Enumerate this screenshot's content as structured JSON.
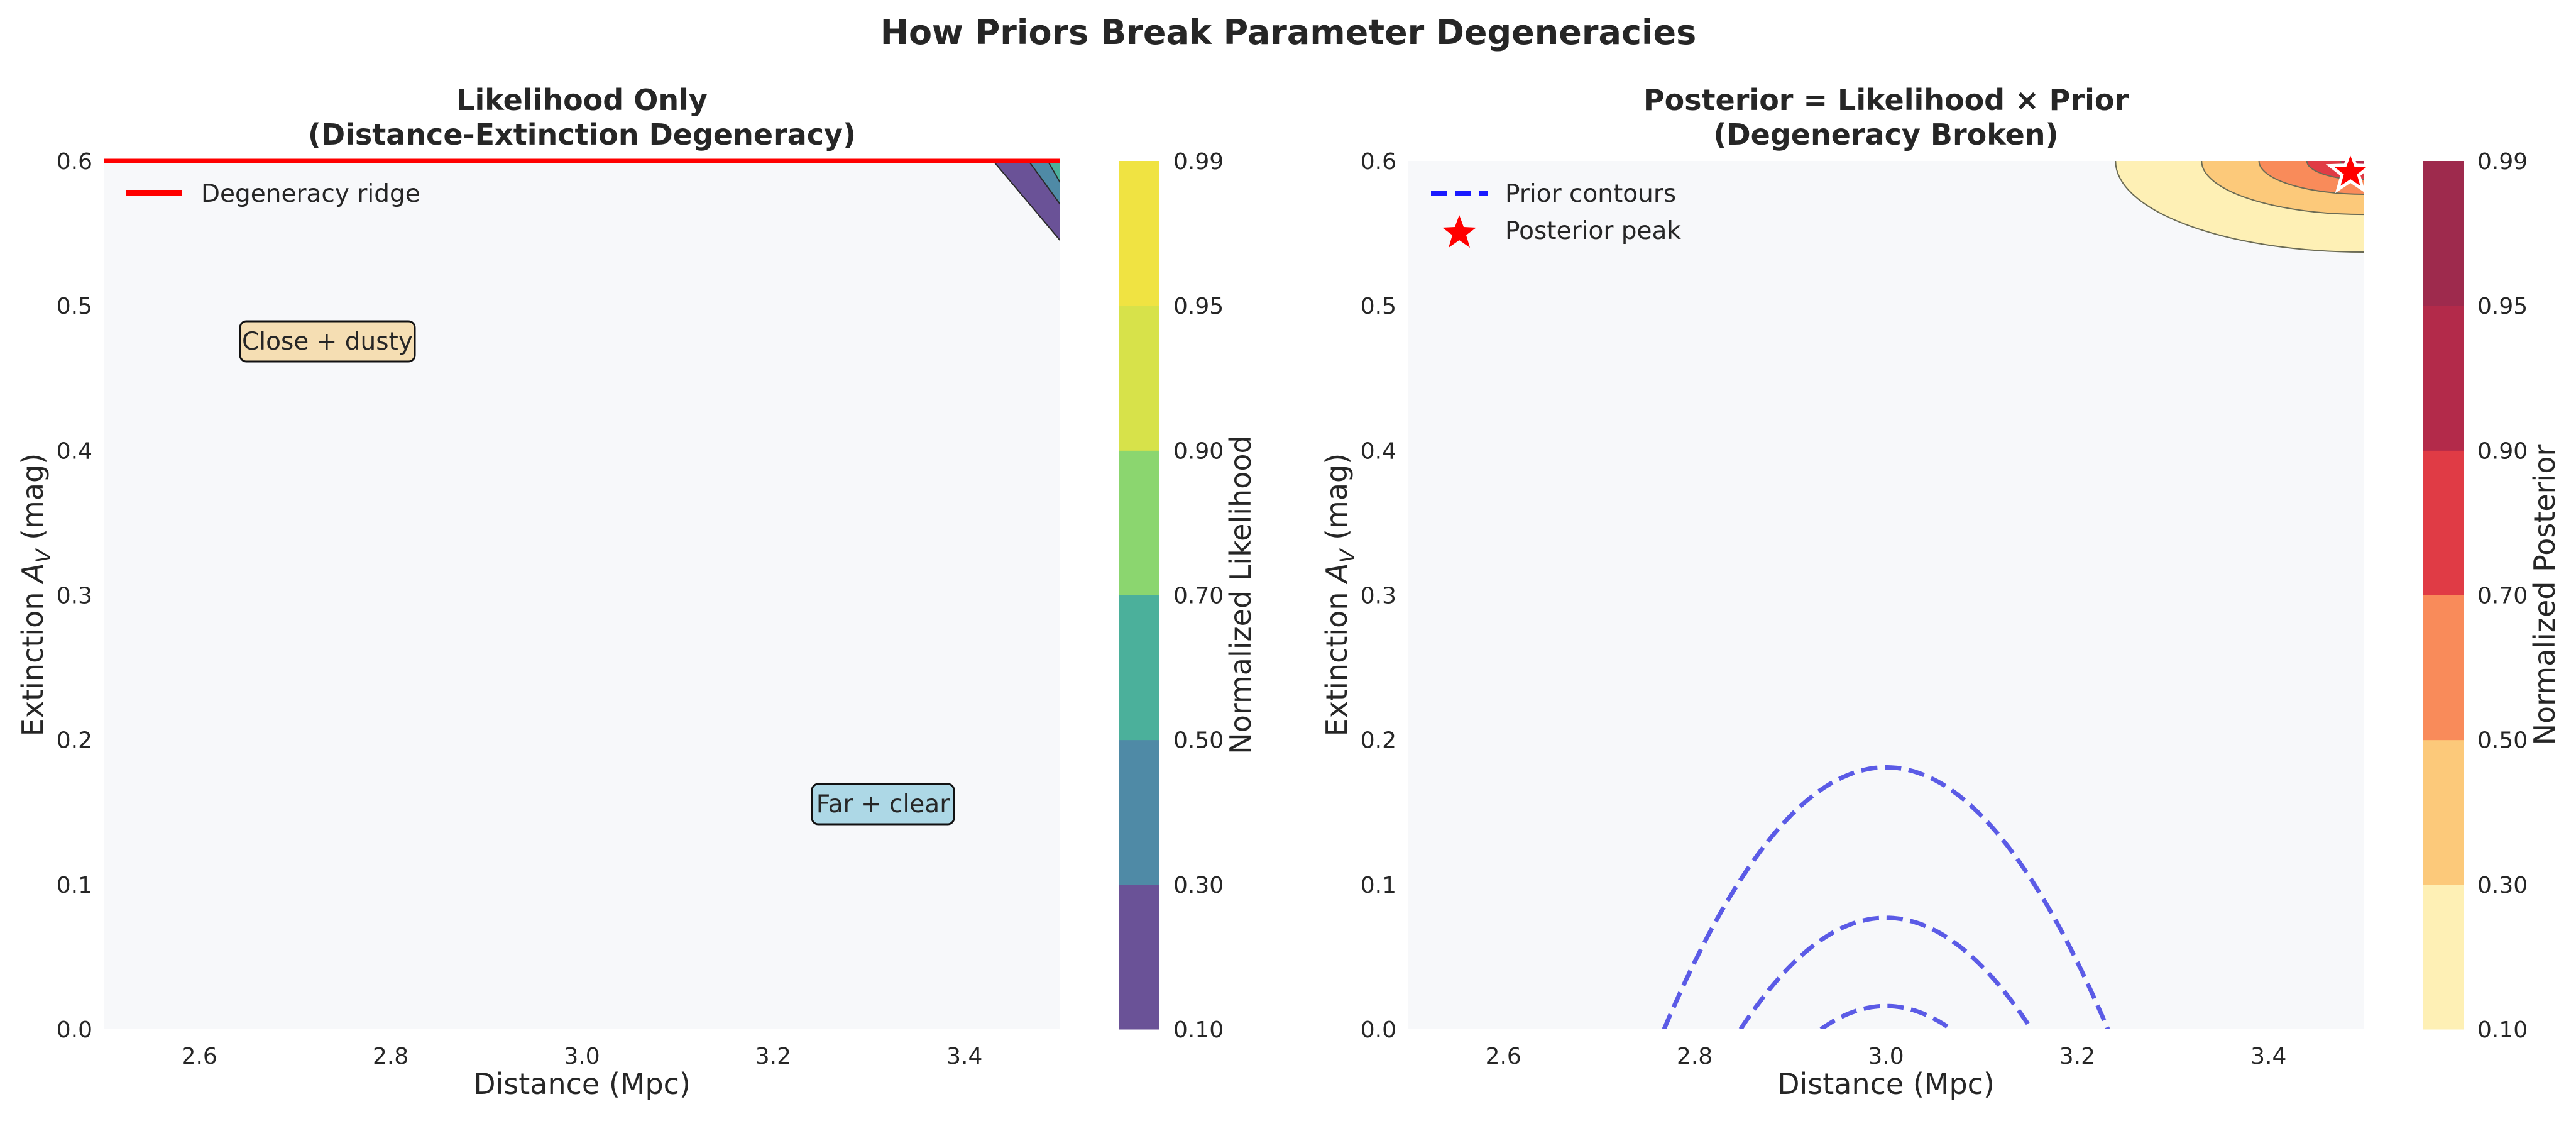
{
  "figure_title": "How Priors Break Parameter Degeneracies",
  "chart_data": [
    {
      "type": "contour",
      "title_lines": [
        "Likelihood Only",
        "(Distance-Extinction Degeneracy)"
      ],
      "xlabel": "Distance (Mpc)",
      "ylabel_prefix": "Extinction ",
      "ylabel_symbol": "A",
      "ylabel_sub": "V",
      "ylabel_suffix": " (mag)",
      "xlim": [
        2.5,
        3.5
      ],
      "ylim": [
        0.0,
        0.6
      ],
      "xticks": [
        "2.6",
        "2.8",
        "3.0",
        "3.2",
        "3.4"
      ],
      "xtick_values": [
        2.6,
        2.8,
        3.0,
        3.2,
        3.4
      ],
      "yticks": [
        "0.0",
        "0.1",
        "0.2",
        "0.3",
        "0.4",
        "0.5",
        "0.6"
      ],
      "ytick_values": [
        0.0,
        0.1,
        0.2,
        0.3,
        0.4,
        0.5,
        0.6
      ],
      "ridge": {
        "label": "Degeneracy ridge",
        "y": 0.6,
        "color": "#ff0000"
      },
      "filled_regions": [
        {
          "level": 0.1,
          "points": [
            [
              3.43,
              0.6
            ],
            [
              3.5,
              0.6
            ],
            [
              3.5,
              0.545
            ]
          ],
          "color": "#6a5297"
        },
        {
          "level": 0.3,
          "points": [
            [
              3.467,
              0.6
            ],
            [
              3.5,
              0.6
            ],
            [
              3.5,
              0.57
            ]
          ],
          "color": "#4f8aa6"
        },
        {
          "level": 0.5,
          "points": [
            [
              3.487,
              0.6
            ],
            [
              3.5,
              0.6
            ],
            [
              3.5,
              0.585
            ]
          ],
          "color": "#4bb09b"
        }
      ],
      "annotations": [
        {
          "text": "Close + dusty",
          "x": 2.73,
          "y": 0.475,
          "bg": "#f5deb3"
        },
        {
          "text": "Far + clear",
          "x": 3.33,
          "y": 0.155,
          "bg": "#add8e6"
        }
      ],
      "colorbar": {
        "label": "Normalized Likelihood",
        "levels": [
          "0.10",
          "0.30",
          "0.50",
          "0.70",
          "0.90",
          "0.95",
          "0.99"
        ],
        "colors": [
          "#6a5297",
          "#4f8aa6",
          "#4bb09b",
          "#8bd66f",
          "#d7e24a",
          "#f0e342"
        ]
      }
    },
    {
      "type": "contour",
      "title_lines": [
        "Posterior = Likelihood × Prior",
        "(Degeneracy Broken)"
      ],
      "xlabel": "Distance (Mpc)",
      "ylabel_prefix": "Extinction ",
      "ylabel_symbol": "A",
      "ylabel_sub": "V",
      "ylabel_suffix": " (mag)",
      "xlim": [
        2.5,
        3.5
      ],
      "ylim": [
        0.0,
        0.6
      ],
      "xticks": [
        "2.6",
        "2.8",
        "3.0",
        "3.2",
        "3.4"
      ],
      "xtick_values": [
        2.6,
        2.8,
        3.0,
        3.2,
        3.4
      ],
      "yticks": [
        "0.0",
        "0.1",
        "0.2",
        "0.3",
        "0.4",
        "0.5",
        "0.6"
      ],
      "ytick_values": [
        0.0,
        0.1,
        0.2,
        0.3,
        0.4,
        0.5,
        0.6
      ],
      "prior_contours": {
        "label": "Prior contours",
        "color": "#5b5be6",
        "center": [
          3.0,
          0.0
        ],
        "arches": [
          {
            "half_width": 0.232,
            "peak": 0.181
          },
          {
            "half_width": 0.152,
            "peak": 0.077
          },
          {
            "half_width": 0.068,
            "peak": 0.016
          }
        ]
      },
      "posterior_peak": {
        "label": "Posterior peak",
        "x": 3.5,
        "y": 0.6,
        "color": "#ff0000"
      },
      "posterior_levels": [
        {
          "level": 0.1,
          "color": "#fef0b5",
          "x_at_top": 3.24,
          "y_at_right": 0.537
        },
        {
          "level": 0.3,
          "color": "#fcc97a",
          "x_at_top": 3.33,
          "y_at_right": 0.563
        },
        {
          "level": 0.5,
          "color": "#f98b5a",
          "x_at_top": 3.39,
          "y_at_right": 0.577
        },
        {
          "level": 0.7,
          "color": "#e03b45",
          "x_at_top": 3.44,
          "y_at_right": 0.587
        },
        {
          "level": 0.9,
          "color": "#b32a4a",
          "x_at_top": 3.475,
          "y_at_right": 0.594
        }
      ],
      "colorbar": {
        "label": "Normalized Posterior",
        "levels": [
          "0.10",
          "0.30",
          "0.50",
          "0.70",
          "0.90",
          "0.95",
          "0.99"
        ],
        "colors": [
          "#fef0b5",
          "#fcc97a",
          "#f98b5a",
          "#e03b45",
          "#b32a4a",
          "#9e2a4d"
        ]
      }
    }
  ]
}
